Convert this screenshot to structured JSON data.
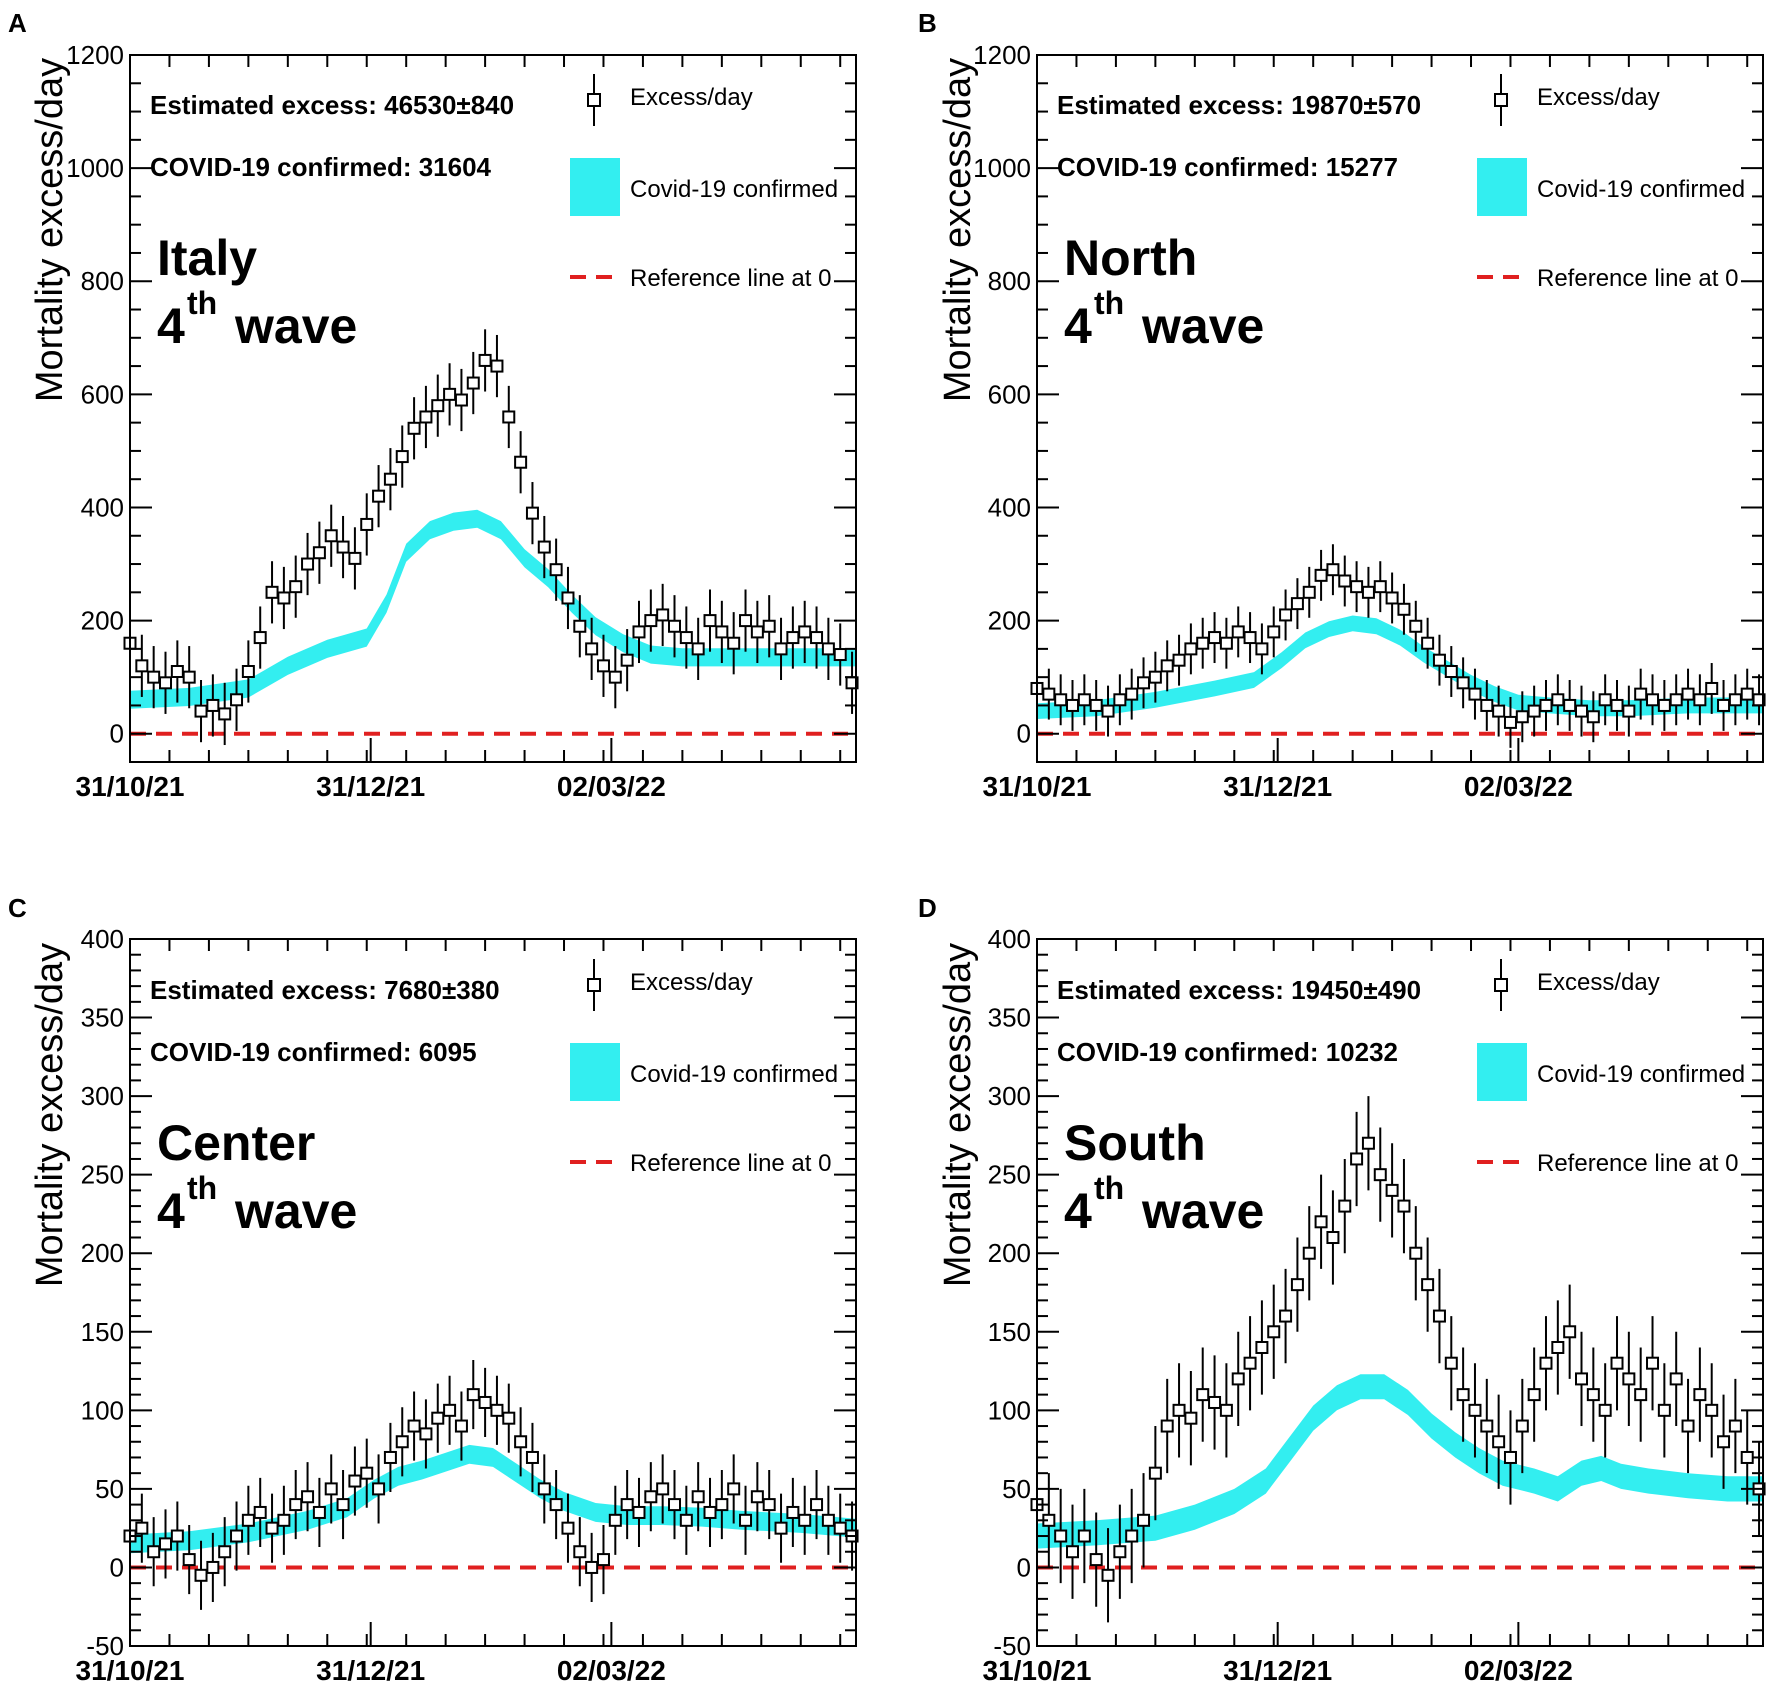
{
  "figure": {
    "x_ticks": [
      "31/10/21",
      "31/12/21",
      "02/03/22"
    ],
    "legend": {
      "points": "Excess/day",
      "band": "Covid-19 confirmed",
      "reference": "Reference line at 0"
    },
    "colors": {
      "band": "#33eef0",
      "reference": "#e02020",
      "points": "#000000",
      "axes": "#000000"
    }
  },
  "chart_data": [
    {
      "type": "scatter",
      "panel_letter": "A",
      "region": "Italy",
      "wave_number": "4",
      "wave_suffix": "th",
      "wave_word": "wave",
      "excess_text": "Estimated excess: 46530±840",
      "confirmed_text": "COVID-19 confirmed: 31604",
      "ylabel": "Mortality excess/day",
      "ylim": [
        -50,
        1200
      ],
      "y_ticks": [
        0,
        200,
        400,
        600,
        800,
        1000,
        1200
      ],
      "y_minor_step": 50,
      "x_range_days": [
        0,
        184
      ],
      "x_tick_days": [
        0,
        61,
        122
      ],
      "error_size": 55,
      "points": [
        [
          0,
          160
        ],
        [
          3,
          120
        ],
        [
          6,
          100
        ],
        [
          9,
          90
        ],
        [
          12,
          110
        ],
        [
          15,
          100
        ],
        [
          18,
          40
        ],
        [
          21,
          50
        ],
        [
          24,
          35
        ],
        [
          27,
          60
        ],
        [
          30,
          110
        ],
        [
          33,
          170
        ],
        [
          36,
          250
        ],
        [
          39,
          240
        ],
        [
          42,
          260
        ],
        [
          45,
          300
        ],
        [
          48,
          320
        ],
        [
          51,
          350
        ],
        [
          54,
          330
        ],
        [
          57,
          310
        ],
        [
          60,
          370
        ],
        [
          63,
          420
        ],
        [
          66,
          450
        ],
        [
          69,
          490
        ],
        [
          72,
          540
        ],
        [
          75,
          560
        ],
        [
          78,
          580
        ],
        [
          81,
          600
        ],
        [
          84,
          590
        ],
        [
          87,
          620
        ],
        [
          90,
          660
        ],
        [
          93,
          650
        ],
        [
          96,
          560
        ],
        [
          99,
          480
        ],
        [
          102,
          390
        ],
        [
          105,
          330
        ],
        [
          108,
          290
        ],
        [
          111,
          240
        ],
        [
          114,
          190
        ],
        [
          117,
          150
        ],
        [
          120,
          120
        ],
        [
          123,
          100
        ],
        [
          126,
          130
        ],
        [
          129,
          180
        ],
        [
          132,
          200
        ],
        [
          135,
          210
        ],
        [
          138,
          190
        ],
        [
          141,
          170
        ],
        [
          144,
          150
        ],
        [
          147,
          200
        ],
        [
          150,
          180
        ],
        [
          153,
          160
        ],
        [
          156,
          200
        ],
        [
          159,
          180
        ],
        [
          162,
          190
        ],
        [
          165,
          150
        ],
        [
          168,
          170
        ],
        [
          171,
          180
        ],
        [
          174,
          170
        ],
        [
          177,
          150
        ],
        [
          180,
          140
        ],
        [
          183,
          90
        ]
      ],
      "band": [
        [
          0,
          60
        ],
        [
          15,
          65
        ],
        [
          30,
          80
        ],
        [
          40,
          120
        ],
        [
          50,
          150
        ],
        [
          60,
          170
        ],
        [
          65,
          230
        ],
        [
          70,
          320
        ],
        [
          76,
          360
        ],
        [
          82,
          375
        ],
        [
          88,
          380
        ],
        [
          94,
          360
        ],
        [
          100,
          310
        ],
        [
          106,
          275
        ],
        [
          112,
          230
        ],
        [
          118,
          190
        ],
        [
          125,
          160
        ],
        [
          132,
          140
        ],
        [
          140,
          135
        ],
        [
          150,
          135
        ],
        [
          160,
          135
        ],
        [
          170,
          135
        ],
        [
          184,
          135
        ]
      ],
      "band_half_width": 16
    },
    {
      "type": "scatter",
      "panel_letter": "B",
      "region": "North",
      "wave_number": "4",
      "wave_suffix": "th",
      "wave_word": "wave",
      "excess_text": "Estimated excess: 19870±570",
      "confirmed_text": "COVID-19 confirmed: 15277",
      "ylabel": "Mortality excess/day",
      "ylim": [
        -50,
        1200
      ],
      "y_ticks": [
        0,
        200,
        400,
        600,
        800,
        1000,
        1200
      ],
      "y_minor_step": 50,
      "x_range_days": [
        0,
        184
      ],
      "x_tick_days": [
        0,
        61,
        122
      ],
      "error_size": 45,
      "points": [
        [
          0,
          80
        ],
        [
          3,
          70
        ],
        [
          6,
          60
        ],
        [
          9,
          50
        ],
        [
          12,
          60
        ],
        [
          15,
          50
        ],
        [
          18,
          40
        ],
        [
          21,
          60
        ],
        [
          24,
          70
        ],
        [
          27,
          90
        ],
        [
          30,
          100
        ],
        [
          33,
          120
        ],
        [
          36,
          130
        ],
        [
          39,
          150
        ],
        [
          42,
          160
        ],
        [
          45,
          170
        ],
        [
          48,
          160
        ],
        [
          51,
          180
        ],
        [
          54,
          170
        ],
        [
          57,
          150
        ],
        [
          60,
          180
        ],
        [
          63,
          210
        ],
        [
          66,
          230
        ],
        [
          69,
          250
        ],
        [
          72,
          280
        ],
        [
          75,
          290
        ],
        [
          78,
          270
        ],
        [
          81,
          260
        ],
        [
          84,
          250
        ],
        [
          87,
          260
        ],
        [
          90,
          240
        ],
        [
          93,
          220
        ],
        [
          96,
          190
        ],
        [
          99,
          160
        ],
        [
          102,
          130
        ],
        [
          105,
          110
        ],
        [
          108,
          90
        ],
        [
          111,
          70
        ],
        [
          114,
          50
        ],
        [
          117,
          40
        ],
        [
          120,
          20
        ],
        [
          123,
          30
        ],
        [
          126,
          40
        ],
        [
          129,
          50
        ],
        [
          132,
          60
        ],
        [
          135,
          50
        ],
        [
          138,
          40
        ],
        [
          141,
          30
        ],
        [
          144,
          60
        ],
        [
          147,
          50
        ],
        [
          150,
          40
        ],
        [
          153,
          70
        ],
        [
          156,
          60
        ],
        [
          159,
          50
        ],
        [
          162,
          60
        ],
        [
          165,
          70
        ],
        [
          168,
          60
        ],
        [
          171,
          80
        ],
        [
          174,
          50
        ],
        [
          177,
          60
        ],
        [
          180,
          70
        ],
        [
          183,
          60
        ]
      ],
      "band": [
        [
          0,
          40
        ],
        [
          15,
          45
        ],
        [
          30,
          60
        ],
        [
          45,
          80
        ],
        [
          55,
          95
        ],
        [
          62,
          130
        ],
        [
          68,
          165
        ],
        [
          74,
          185
        ],
        [
          80,
          195
        ],
        [
          86,
          190
        ],
        [
          92,
          170
        ],
        [
          98,
          140
        ],
        [
          104,
          115
        ],
        [
          110,
          90
        ],
        [
          116,
          70
        ],
        [
          122,
          55
        ],
        [
          130,
          50
        ],
        [
          140,
          45
        ],
        [
          150,
          45
        ],
        [
          165,
          50
        ],
        [
          184,
          50
        ]
      ],
      "band_half_width": 14
    },
    {
      "type": "scatter",
      "panel_letter": "C",
      "region": "Center",
      "wave_number": "4",
      "wave_suffix": "th",
      "wave_word": "wave",
      "excess_text": "Estimated excess: 7680±380",
      "confirmed_text": "COVID-19 confirmed: 6095",
      "ylabel": "Mortality excess/day",
      "ylim": [
        -50,
        400
      ],
      "y_ticks": [
        -50,
        0,
        50,
        100,
        150,
        200,
        250,
        300,
        350,
        400
      ],
      "y_minor_step": 10,
      "x_range_days": [
        0,
        184
      ],
      "x_tick_days": [
        0,
        61,
        122
      ],
      "error_size": 22,
      "points": [
        [
          0,
          20
        ],
        [
          3,
          25
        ],
        [
          6,
          10
        ],
        [
          9,
          15
        ],
        [
          12,
          20
        ],
        [
          15,
          5
        ],
        [
          18,
          -5
        ],
        [
          21,
          0
        ],
        [
          24,
          10
        ],
        [
          27,
          20
        ],
        [
          30,
          30
        ],
        [
          33,
          35
        ],
        [
          36,
          25
        ],
        [
          39,
          30
        ],
        [
          42,
          40
        ],
        [
          45,
          45
        ],
        [
          48,
          35
        ],
        [
          51,
          50
        ],
        [
          54,
          40
        ],
        [
          57,
          55
        ],
        [
          60,
          60
        ],
        [
          63,
          50
        ],
        [
          66,
          70
        ],
        [
          69,
          80
        ],
        [
          72,
          90
        ],
        [
          75,
          85
        ],
        [
          78,
          95
        ],
        [
          81,
          100
        ],
        [
          84,
          90
        ],
        [
          87,
          110
        ],
        [
          90,
          105
        ],
        [
          93,
          100
        ],
        [
          96,
          95
        ],
        [
          99,
          80
        ],
        [
          102,
          70
        ],
        [
          105,
          50
        ],
        [
          108,
          40
        ],
        [
          111,
          25
        ],
        [
          114,
          10
        ],
        [
          117,
          0
        ],
        [
          120,
          5
        ],
        [
          123,
          30
        ],
        [
          126,
          40
        ],
        [
          129,
          35
        ],
        [
          132,
          45
        ],
        [
          135,
          50
        ],
        [
          138,
          40
        ],
        [
          141,
          30
        ],
        [
          144,
          45
        ],
        [
          147,
          35
        ],
        [
          150,
          40
        ],
        [
          153,
          50
        ],
        [
          156,
          30
        ],
        [
          159,
          45
        ],
        [
          162,
          40
        ],
        [
          165,
          25
        ],
        [
          168,
          35
        ],
        [
          171,
          30
        ],
        [
          174,
          40
        ],
        [
          177,
          30
        ],
        [
          180,
          25
        ],
        [
          183,
          20
        ]
      ],
      "band": [
        [
          0,
          15
        ],
        [
          15,
          17
        ],
        [
          30,
          22
        ],
        [
          45,
          30
        ],
        [
          55,
          38
        ],
        [
          62,
          50
        ],
        [
          68,
          58
        ],
        [
          74,
          62
        ],
        [
          80,
          67
        ],
        [
          86,
          72
        ],
        [
          92,
          70
        ],
        [
          98,
          60
        ],
        [
          104,
          50
        ],
        [
          110,
          42
        ],
        [
          118,
          35
        ],
        [
          126,
          33
        ],
        [
          135,
          33
        ],
        [
          145,
          32
        ],
        [
          155,
          30
        ],
        [
          170,
          28
        ],
        [
          184,
          25
        ]
      ],
      "band_half_width": 6
    },
    {
      "type": "scatter",
      "panel_letter": "D",
      "region": "South",
      "wave_number": "4",
      "wave_suffix": "th",
      "wave_word": "wave",
      "excess_text": "Estimated excess: 19450±490",
      "confirmed_text": "COVID-19 confirmed: 10232",
      "ylabel": "Mortality excess/day",
      "ylim": [
        -50,
        400
      ],
      "y_ticks": [
        -50,
        0,
        50,
        100,
        150,
        200,
        250,
        300,
        350,
        400
      ],
      "y_minor_step": 10,
      "x_range_days": [
        0,
        184
      ],
      "x_tick_days": [
        0,
        61,
        122
      ],
      "error_size": 30,
      "points": [
        [
          0,
          40
        ],
        [
          3,
          30
        ],
        [
          6,
          20
        ],
        [
          9,
          10
        ],
        [
          12,
          20
        ],
        [
          15,
          5
        ],
        [
          18,
          -5
        ],
        [
          21,
          10
        ],
        [
          24,
          20
        ],
        [
          27,
          30
        ],
        [
          30,
          60
        ],
        [
          33,
          90
        ],
        [
          36,
          100
        ],
        [
          39,
          95
        ],
        [
          42,
          110
        ],
        [
          45,
          105
        ],
        [
          48,
          100
        ],
        [
          51,
          120
        ],
        [
          54,
          130
        ],
        [
          57,
          140
        ],
        [
          60,
          150
        ],
        [
          63,
          160
        ],
        [
          66,
          180
        ],
        [
          69,
          200
        ],
        [
          72,
          220
        ],
        [
          75,
          210
        ],
        [
          78,
          230
        ],
        [
          81,
          260
        ],
        [
          84,
          270
        ],
        [
          87,
          250
        ],
        [
          90,
          240
        ],
        [
          93,
          230
        ],
        [
          96,
          200
        ],
        [
          99,
          180
        ],
        [
          102,
          160
        ],
        [
          105,
          130
        ],
        [
          108,
          110
        ],
        [
          111,
          100
        ],
        [
          114,
          90
        ],
        [
          117,
          80
        ],
        [
          120,
          70
        ],
        [
          123,
          90
        ],
        [
          126,
          110
        ],
        [
          129,
          130
        ],
        [
          132,
          140
        ],
        [
          135,
          150
        ],
        [
          138,
          120
        ],
        [
          141,
          110
        ],
        [
          144,
          100
        ],
        [
          147,
          130
        ],
        [
          150,
          120
        ],
        [
          153,
          110
        ],
        [
          156,
          130
        ],
        [
          159,
          100
        ],
        [
          162,
          120
        ],
        [
          165,
          90
        ],
        [
          168,
          110
        ],
        [
          171,
          100
        ],
        [
          174,
          80
        ],
        [
          177,
          90
        ],
        [
          180,
          70
        ],
        [
          183,
          50
        ]
      ],
      "band": [
        [
          0,
          20
        ],
        [
          15,
          22
        ],
        [
          30,
          25
        ],
        [
          40,
          32
        ],
        [
          50,
          42
        ],
        [
          58,
          55
        ],
        [
          64,
          75
        ],
        [
          70,
          95
        ],
        [
          76,
          108
        ],
        [
          82,
          115
        ],
        [
          88,
          115
        ],
        [
          94,
          105
        ],
        [
          100,
          90
        ],
        [
          106,
          78
        ],
        [
          112,
          68
        ],
        [
          118,
          60
        ],
        [
          126,
          55
        ],
        [
          132,
          50
        ],
        [
          138,
          60
        ],
        [
          143,
          63
        ],
        [
          148,
          58
        ],
        [
          155,
          55
        ],
        [
          165,
          52
        ],
        [
          175,
          50
        ],
        [
          184,
          50
        ]
      ],
      "band_half_width": 8
    }
  ]
}
